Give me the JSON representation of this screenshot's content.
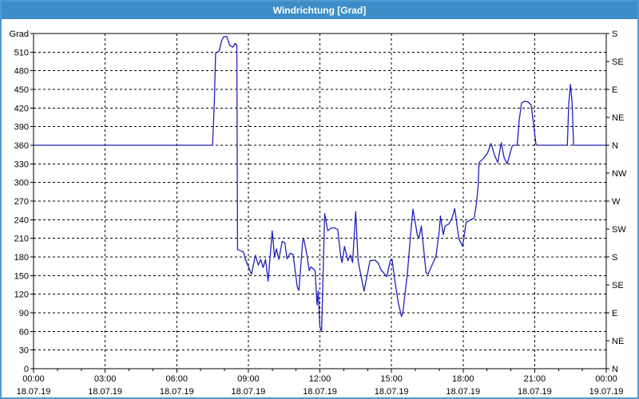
{
  "window": {
    "title": "Windrichtung [Grad]"
  },
  "colors": {
    "titlebar_bg": "#3d8ec6",
    "titlebar_text": "#ffffff",
    "frame_border": "#4f9bd1",
    "plot_border": "#000000",
    "grid": "#000000",
    "series_line": "#2020bb",
    "label_text": "#000000",
    "plot_bg": "#ffffff"
  },
  "chart_data": {
    "type": "line",
    "title": "Windrichtung [Grad]",
    "grid": true,
    "x_axis": {
      "range_hours": [
        0,
        24
      ],
      "major_tick_hours": 3,
      "minor_tick_hours": 1,
      "ticks": [
        {
          "hour": 0,
          "time": "00:00",
          "date": "18.07.19"
        },
        {
          "hour": 3,
          "time": "03:00",
          "date": "18.07.19"
        },
        {
          "hour": 6,
          "time": "06:00",
          "date": "18.07.19"
        },
        {
          "hour": 9,
          "time": "09:00",
          "date": "18.07.19"
        },
        {
          "hour": 12,
          "time": "12:00",
          "date": "18.07.19"
        },
        {
          "hour": 15,
          "time": "15:00",
          "date": "18.07.19"
        },
        {
          "hour": 18,
          "time": "18:00",
          "date": "18.07.19"
        },
        {
          "hour": 21,
          "time": "21:00",
          "date": "18.07.19"
        },
        {
          "hour": 24,
          "time": "00:00",
          "date": "19.07.19"
        }
      ]
    },
    "y_axis_left": {
      "label": "Grad",
      "min": 0,
      "max": 540,
      "tick_interval": 30,
      "ticks": [
        {
          "deg": 540,
          "label": "Grad"
        },
        {
          "deg": 510,
          "label": "510"
        },
        {
          "deg": 480,
          "label": "480"
        },
        {
          "deg": 450,
          "label": "450"
        },
        {
          "deg": 420,
          "label": "420"
        },
        {
          "deg": 390,
          "label": "390"
        },
        {
          "deg": 360,
          "label": "360"
        },
        {
          "deg": 330,
          "label": "330"
        },
        {
          "deg": 300,
          "label": "300"
        },
        {
          "deg": 270,
          "label": "270"
        },
        {
          "deg": 240,
          "label": "240"
        },
        {
          "deg": 210,
          "label": "210"
        },
        {
          "deg": 180,
          "label": "180"
        },
        {
          "deg": 150,
          "label": "150"
        },
        {
          "deg": 120,
          "label": "120"
        },
        {
          "deg": 90,
          "label": "90"
        },
        {
          "deg": 60,
          "label": "60"
        },
        {
          "deg": 30,
          "label": "30"
        },
        {
          "deg": 0,
          "label": "0"
        }
      ]
    },
    "y_axis_right": {
      "tick_interval": 45,
      "ticks": [
        {
          "deg": 540,
          "label": "S"
        },
        {
          "deg": 495,
          "label": "SE"
        },
        {
          "deg": 450,
          "label": "E"
        },
        {
          "deg": 405,
          "label": "NE"
        },
        {
          "deg": 360,
          "label": "N"
        },
        {
          "deg": 315,
          "label": "NW"
        },
        {
          "deg": 270,
          "label": "W"
        },
        {
          "deg": 225,
          "label": "SW"
        },
        {
          "deg": 180,
          "label": "S"
        },
        {
          "deg": 135,
          "label": "SE"
        },
        {
          "deg": 90,
          "label": "E"
        },
        {
          "deg": 45,
          "label": "NE"
        },
        {
          "deg": 0,
          "label": "N"
        }
      ]
    },
    "series": [
      {
        "name": "Windrichtung",
        "color": "#2020bb",
        "points": [
          [
            0,
            360
          ],
          [
            1,
            360
          ],
          [
            2,
            360
          ],
          [
            3,
            360
          ],
          [
            4,
            360
          ],
          [
            5,
            360
          ],
          [
            6,
            360
          ],
          [
            7,
            360
          ],
          [
            7.5,
            360
          ],
          [
            7.55,
            405
          ],
          [
            7.58,
            437
          ],
          [
            7.63,
            508
          ],
          [
            7.7,
            510
          ],
          [
            7.78,
            512
          ],
          [
            7.88,
            528
          ],
          [
            7.97,
            535
          ],
          [
            8.1,
            535
          ],
          [
            8.22,
            521
          ],
          [
            8.35,
            518
          ],
          [
            8.45,
            524
          ],
          [
            8.52,
            521
          ],
          [
            8.55,
            192
          ],
          [
            8.68,
            190
          ],
          [
            8.8,
            188
          ],
          [
            8.88,
            176
          ],
          [
            9.0,
            165
          ],
          [
            9.13,
            152
          ],
          [
            9.3,
            183
          ],
          [
            9.42,
            167
          ],
          [
            9.52,
            176
          ],
          [
            9.62,
            163
          ],
          [
            9.72,
            176
          ],
          [
            9.83,
            141
          ],
          [
            10.0,
            222
          ],
          [
            10.1,
            180
          ],
          [
            10.18,
            193
          ],
          [
            10.28,
            176
          ],
          [
            10.42,
            205
          ],
          [
            10.53,
            203
          ],
          [
            10.62,
            177
          ],
          [
            10.75,
            186
          ],
          [
            10.88,
            184
          ],
          [
            11.05,
            132
          ],
          [
            11.12,
            126
          ],
          [
            11.28,
            206
          ],
          [
            11.32,
            210
          ],
          [
            11.47,
            180
          ],
          [
            11.55,
            158
          ],
          [
            11.63,
            164
          ],
          [
            11.8,
            158
          ],
          [
            11.88,
            103
          ],
          [
            11.93,
            125
          ],
          [
            12.0,
            67
          ],
          [
            12.07,
            60
          ],
          [
            12.2,
            250
          ],
          [
            12.33,
            222
          ],
          [
            12.45,
            226
          ],
          [
            12.6,
            227
          ],
          [
            12.75,
            224
          ],
          [
            12.88,
            178
          ],
          [
            12.93,
            171
          ],
          [
            13.03,
            197
          ],
          [
            13.17,
            174
          ],
          [
            13.28,
            183
          ],
          [
            13.37,
            171
          ],
          [
            13.5,
            253
          ],
          [
            13.6,
            174
          ],
          [
            13.72,
            150
          ],
          [
            13.85,
            125
          ],
          [
            14.1,
            174
          ],
          [
            14.3,
            175
          ],
          [
            14.45,
            170
          ],
          [
            14.55,
            160
          ],
          [
            14.72,
            152
          ],
          [
            14.8,
            148
          ],
          [
            14.95,
            174
          ],
          [
            15.02,
            177
          ],
          [
            15.13,
            145
          ],
          [
            15.28,
            107
          ],
          [
            15.42,
            84
          ],
          [
            15.48,
            92
          ],
          [
            15.67,
            154
          ],
          [
            15.8,
            216
          ],
          [
            15.9,
            257
          ],
          [
            16.08,
            216
          ],
          [
            16.15,
            210
          ],
          [
            16.25,
            230
          ],
          [
            16.45,
            155
          ],
          [
            16.53,
            152
          ],
          [
            16.7,
            167
          ],
          [
            16.87,
            182
          ],
          [
            17.0,
            221
          ],
          [
            17.05,
            246
          ],
          [
            17.17,
            216
          ],
          [
            17.25,
            230
          ],
          [
            17.4,
            233
          ],
          [
            17.53,
            242
          ],
          [
            17.65,
            258
          ],
          [
            17.82,
            210
          ],
          [
            17.98,
            197
          ],
          [
            18.13,
            236
          ],
          [
            18.33,
            240
          ],
          [
            18.47,
            243
          ],
          [
            18.57,
            270
          ],
          [
            18.63,
            295
          ],
          [
            18.67,
            332
          ],
          [
            18.78,
            336
          ],
          [
            18.9,
            341
          ],
          [
            19.02,
            347
          ],
          [
            19.17,
            363
          ],
          [
            19.33,
            343
          ],
          [
            19.45,
            332
          ],
          [
            19.6,
            364
          ],
          [
            19.72,
            340
          ],
          [
            19.85,
            330
          ],
          [
            20.05,
            358
          ],
          [
            20.1,
            360
          ],
          [
            20.27,
            360
          ],
          [
            20.35,
            400
          ],
          [
            20.45,
            428
          ],
          [
            20.58,
            431
          ],
          [
            20.72,
            430
          ],
          [
            20.85,
            425
          ],
          [
            20.95,
            396
          ],
          [
            21.05,
            362
          ],
          [
            21.1,
            360
          ],
          [
            21.6,
            360
          ],
          [
            22.1,
            360
          ],
          [
            22.37,
            360
          ],
          [
            22.43,
            428
          ],
          [
            22.5,
            458
          ],
          [
            22.57,
            428
          ],
          [
            22.63,
            360
          ],
          [
            23.0,
            360
          ],
          [
            23.5,
            360
          ],
          [
            24.0,
            360
          ]
        ]
      }
    ]
  }
}
